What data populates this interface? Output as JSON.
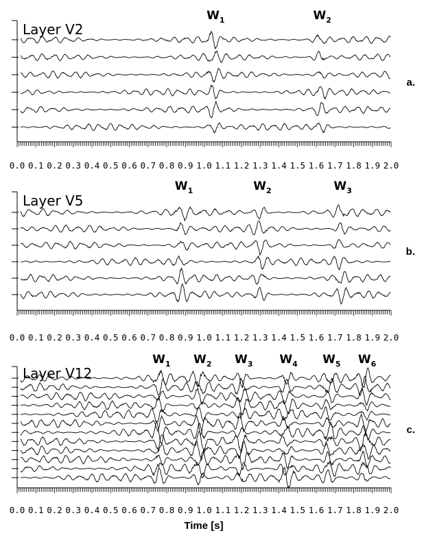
{
  "chart_data": [
    {
      "type": "line",
      "panel_tag": "a.",
      "title": "Layer V2",
      "trace_count": 6,
      "xlim": [
        0.0,
        2.0
      ],
      "x_ticks": [
        "0.0",
        "0.1",
        "0.2",
        "0.3",
        "0.4",
        "0.5",
        "0.6",
        "0.7",
        "0.8",
        "0.9",
        "1.0",
        "1.1",
        "1.2",
        "1.3",
        "1.4",
        "1.5",
        "1.6",
        "1.7",
        "1.8",
        "1.9",
        "2.0"
      ],
      "wave_arrivals": [
        {
          "label": "W",
          "sub": "1",
          "time": 1.05
        },
        {
          "label": "W",
          "sub": "2",
          "time": 1.62
        }
      ]
    },
    {
      "type": "line",
      "panel_tag": "b.",
      "title": "Layer V5",
      "trace_count": 6,
      "xlim": [
        0.0,
        2.0
      ],
      "x_ticks": [
        "0.0",
        "0.1",
        "0.2",
        "0.3",
        "0.4",
        "0.5",
        "0.6",
        "0.7",
        "0.8",
        "0.9",
        "1.0",
        "1.1",
        "1.2",
        "1.3",
        "1.4",
        "1.5",
        "1.6",
        "1.7",
        "1.8",
        "1.9",
        "2.0"
      ],
      "wave_arrivals": [
        {
          "label": "W",
          "sub": "1",
          "time": 0.88
        },
        {
          "label": "W",
          "sub": "2",
          "time": 1.3
        },
        {
          "label": "W",
          "sub": "3",
          "time": 1.73
        }
      ]
    },
    {
      "type": "line",
      "panel_tag": "c.",
      "title": "Layer V12",
      "trace_count": 12,
      "xlim": [
        0.0,
        2.0
      ],
      "xlabel": "Time [s]",
      "x_ticks": [
        "0.0",
        "0.1",
        "0.2",
        "0.3",
        "0.4",
        "0.5",
        "0.6",
        "0.7",
        "0.8",
        "0.9",
        "1.0",
        "1.1",
        "1.2",
        "1.3",
        "1.4",
        "1.5",
        "1.6",
        "1.7",
        "1.8",
        "1.9",
        "2.0"
      ],
      "wave_arrivals": [
        {
          "label": "W",
          "sub": "1",
          "time": 0.76
        },
        {
          "label": "W",
          "sub": "2",
          "time": 0.98
        },
        {
          "label": "W",
          "sub": "3",
          "time": 1.2
        },
        {
          "label": "W",
          "sub": "4",
          "time": 1.44
        },
        {
          "label": "W",
          "sub": "5",
          "time": 1.67
        },
        {
          "label": "W",
          "sub": "6",
          "time": 1.86
        }
      ]
    }
  ]
}
